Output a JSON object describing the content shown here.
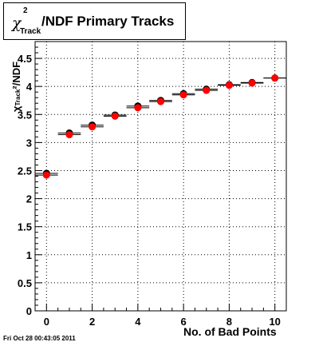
{
  "title": {
    "symbol": "χ",
    "superscript": "2",
    "subscript": "Track",
    "text": "/NDF Primary Tracks"
  },
  "timestamp": "Fri Oct 28 00:43:05 2011",
  "chart_data": {
    "type": "scatter",
    "title": "χ²_Track/NDF Primary Tracks",
    "xlabel": "No. of Bad Points",
    "ylabel": "χ²_Track/NDF",
    "xlim": [
      -0.5,
      10.5
    ],
    "ylim": [
      0,
      4.8
    ],
    "xticks": [
      0,
      2,
      4,
      6,
      8,
      10
    ],
    "yticks": [
      0,
      0.5,
      1,
      1.5,
      2,
      2.5,
      3,
      3.5,
      4,
      4.5
    ],
    "ytick_labels": [
      "0",
      "0.5",
      "1",
      "1.5",
      "2",
      "2.5",
      "3",
      "3.5",
      "4",
      "4.5"
    ],
    "grid": true,
    "series": [
      {
        "color": "#000000",
        "marker": "circle-filled",
        "x": [
          0,
          1,
          2,
          3,
          4,
          5,
          6,
          7,
          8,
          9,
          10
        ],
        "y": [
          2.45,
          3.17,
          3.31,
          3.49,
          3.65,
          3.75,
          3.87,
          3.95,
          4.03,
          4.07,
          4.15
        ]
      },
      {
        "color": "#ff0000",
        "marker": "circle-filled",
        "x": [
          0,
          1,
          2,
          3,
          4,
          5,
          6,
          7,
          8,
          9,
          10
        ],
        "y": [
          2.42,
          3.14,
          3.28,
          3.47,
          3.62,
          3.73,
          3.85,
          3.93,
          4.02,
          4.06,
          4.15
        ]
      }
    ]
  }
}
